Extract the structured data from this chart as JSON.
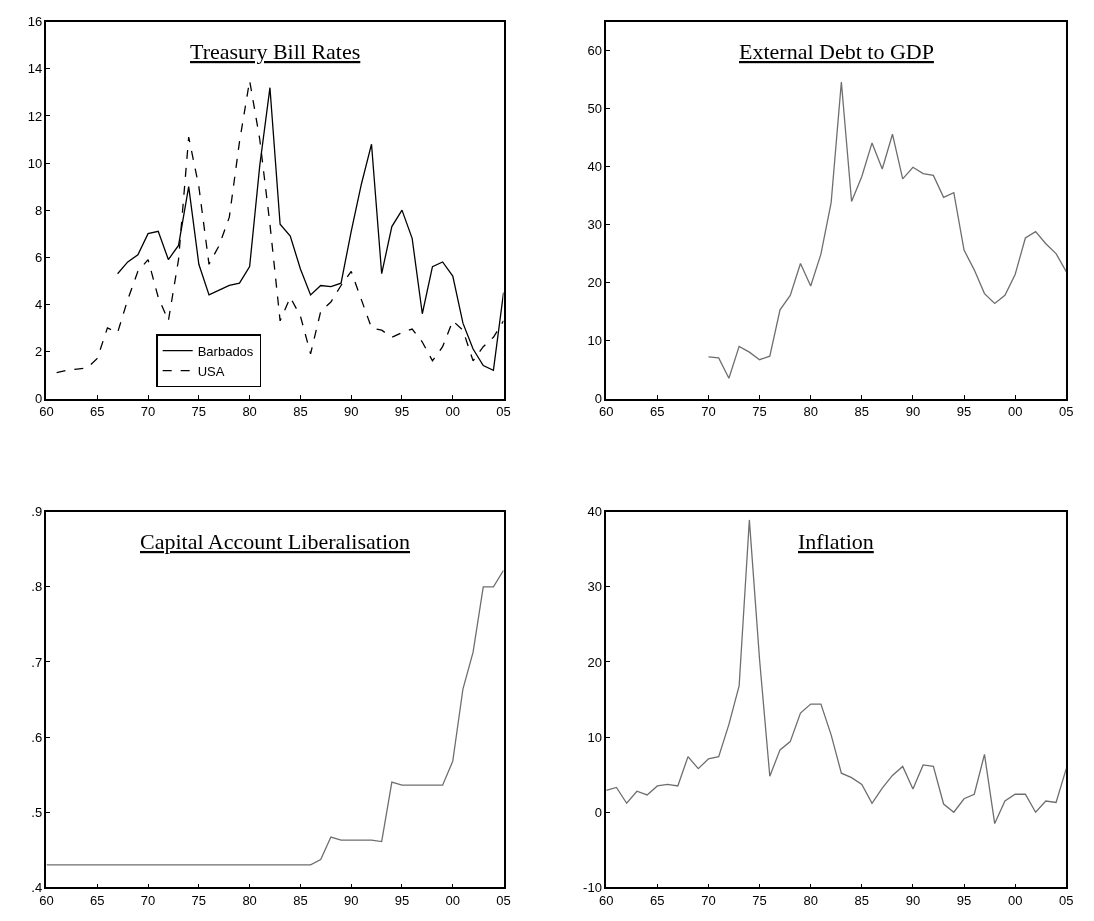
{
  "chart_data": [
    {
      "type": "line",
      "title": "Treasury Bill Rates",
      "xlim": [
        1960,
        2005
      ],
      "xticks": [
        {
          "value": 1960,
          "label": "60"
        },
        {
          "value": 1965,
          "label": "65"
        },
        {
          "value": 1970,
          "label": "70"
        },
        {
          "value": 1975,
          "label": "75"
        },
        {
          "value": 1980,
          "label": "80"
        },
        {
          "value": 1985,
          "label": "85"
        },
        {
          "value": 1990,
          "label": "90"
        },
        {
          "value": 1995,
          "label": "95"
        },
        {
          "value": 2000,
          "label": "00"
        },
        {
          "value": 2005,
          "label": "05"
        }
      ],
      "ylim": [
        0,
        16
      ],
      "yticks": [
        0,
        2,
        4,
        6,
        8,
        10,
        12,
        14,
        16
      ],
      "legend": "bottom left",
      "series": [
        {
          "name": "Barbados",
          "color": "#000000",
          "line_style": "solid",
          "x": [
            1967,
            1968,
            1969,
            1970,
            1971,
            1972,
            1973,
            1974,
            1975,
            1976,
            1977,
            1978,
            1979,
            1980,
            1981,
            1982,
            1983,
            1984,
            1985,
            1986,
            1987,
            1988,
            1989,
            1990,
            1991,
            1992,
            1993,
            1994,
            1995,
            1996,
            1997,
            1998,
            1999,
            2000,
            2001,
            2002,
            2003,
            2004,
            2005
          ],
          "values": [
            5.3,
            5.8,
            6.1,
            7.0,
            7.1,
            5.9,
            6.5,
            9.0,
            5.7,
            4.4,
            4.6,
            4.8,
            4.9,
            5.6,
            9.9,
            13.2,
            7.4,
            6.9,
            5.5,
            4.4,
            4.8,
            4.75,
            4.9,
            7.1,
            9.1,
            10.8,
            5.3,
            7.3,
            8.0,
            6.8,
            3.6,
            5.6,
            5.8,
            5.2,
            3.2,
            2.1,
            1.4,
            1.2,
            4.5
          ]
        },
        {
          "name": "USA",
          "color": "#000000",
          "line_style": "dashed",
          "x": [
            1961,
            1962,
            1963,
            1964,
            1965,
            1966,
            1967,
            1968,
            1969,
            1970,
            1971,
            1972,
            1973,
            1974,
            1975,
            1976,
            1977,
            1978,
            1979,
            1980,
            1981,
            1982,
            1983,
            1984,
            1985,
            1986,
            1987,
            1988,
            1989,
            1990,
            1991,
            1992,
            1993,
            1994,
            1995,
            1996,
            1997,
            1998,
            1999,
            2000,
            2001,
            2002,
            2003,
            2004,
            2005
          ],
          "values": [
            1.1,
            1.2,
            1.25,
            1.3,
            1.7,
            3.0,
            2.8,
            4.2,
            5.4,
            5.9,
            4.3,
            3.3,
            5.9,
            11.1,
            9.0,
            5.7,
            6.5,
            7.7,
            10.9,
            13.5,
            11.0,
            7.4,
            3.3,
            4.3,
            3.5,
            1.9,
            3.7,
            4.1,
            4.8,
            5.4,
            4.2,
            3.0,
            2.9,
            2.6,
            2.8,
            2.95,
            2.4,
            1.6,
            2.2,
            3.3,
            2.9,
            1.6,
            2.2,
            2.6,
            3.3
          ]
        }
      ]
    },
    {
      "type": "line",
      "title": "External Debt to GDP",
      "xlim": [
        1960,
        2005
      ],
      "xticks": [
        {
          "value": 1960,
          "label": "60"
        },
        {
          "value": 1965,
          "label": "65"
        },
        {
          "value": 1970,
          "label": "70"
        },
        {
          "value": 1975,
          "label": "75"
        },
        {
          "value": 1980,
          "label": "80"
        },
        {
          "value": 1985,
          "label": "85"
        },
        {
          "value": 1990,
          "label": "90"
        },
        {
          "value": 1995,
          "label": "95"
        },
        {
          "value": 2000,
          "label": "00"
        },
        {
          "value": 2005,
          "label": "05"
        }
      ],
      "ylim": [
        0,
        65
      ],
      "yticks": [
        0,
        10,
        20,
        30,
        40,
        50,
        60
      ],
      "legend": false,
      "series": [
        {
          "color": "#6e6e6e",
          "line_style": "solid",
          "x": [
            1970,
            1971,
            1972,
            1973,
            1974,
            1975,
            1976,
            1977,
            1978,
            1979,
            1980,
            1981,
            1982,
            1983,
            1984,
            1985,
            1986,
            1987,
            1988,
            1989,
            1990,
            1991,
            1992,
            1993,
            1994,
            1995,
            1996,
            1997,
            1998,
            1999,
            2000,
            2001,
            2002,
            2003,
            2004,
            2005
          ],
          "values": [
            7.2,
            7.0,
            3.5,
            9.0,
            8.0,
            6.7,
            7.3,
            15.3,
            17.8,
            23.3,
            19.4,
            24.9,
            33.8,
            54.6,
            34.0,
            38.3,
            44.1,
            39.6,
            45.6,
            37.9,
            39.9,
            38.8,
            38.5,
            34.7,
            35.5,
            25.6,
            22.2,
            18.1,
            16.4,
            17.8,
            21.4,
            27.7,
            28.8,
            26.7,
            25.0,
            21.9
          ]
        }
      ]
    },
    {
      "type": "line",
      "title": "Capital Account Liberalisation",
      "xlim": [
        1960,
        2005
      ],
      "xticks": [
        {
          "value": 1960,
          "label": "60"
        },
        {
          "value": 1965,
          "label": "65"
        },
        {
          "value": 1970,
          "label": "70"
        },
        {
          "value": 1975,
          "label": "75"
        },
        {
          "value": 1980,
          "label": "80"
        },
        {
          "value": 1985,
          "label": "85"
        },
        {
          "value": 1990,
          "label": "90"
        },
        {
          "value": 1995,
          "label": "95"
        },
        {
          "value": 2000,
          "label": "00"
        },
        {
          "value": 2005,
          "label": "05"
        }
      ],
      "ylim": [
        0.4,
        0.9
      ],
      "yticks": [
        {
          "value": 0.4,
          "label": ".4"
        },
        {
          "value": 0.5,
          "label": ".5"
        },
        {
          "value": 0.6,
          "label": ".6"
        },
        {
          "value": 0.7,
          "label": ".7"
        },
        {
          "value": 0.8,
          "label": ".8"
        },
        {
          "value": 0.9,
          "label": ".9"
        }
      ],
      "legend": false,
      "series": [
        {
          "color": "#6e6e6e",
          "line_style": "solid",
          "x": [
            1960,
            1961,
            1962,
            1963,
            1964,
            1965,
            1966,
            1967,
            1968,
            1969,
            1970,
            1971,
            1972,
            1973,
            1974,
            1975,
            1976,
            1977,
            1978,
            1979,
            1980,
            1981,
            1982,
            1983,
            1984,
            1985,
            1986,
            1987,
            1988,
            1989,
            1990,
            1991,
            1992,
            1993,
            1994,
            1995,
            1996,
            1997,
            1998,
            1999,
            2000,
            2001,
            2002,
            2003,
            2004,
            2005
          ],
          "values": [
            0.43,
            0.43,
            0.43,
            0.43,
            0.43,
            0.43,
            0.43,
            0.43,
            0.43,
            0.43,
            0.43,
            0.43,
            0.43,
            0.43,
            0.43,
            0.43,
            0.43,
            0.43,
            0.43,
            0.43,
            0.43,
            0.43,
            0.43,
            0.43,
            0.43,
            0.43,
            0.43,
            0.437,
            0.467,
            0.463,
            0.463,
            0.463,
            0.463,
            0.461,
            0.54,
            0.536,
            0.536,
            0.536,
            0.536,
            0.536,
            0.568,
            0.664,
            0.713,
            0.8,
            0.8,
            0.822
          ]
        }
      ]
    },
    {
      "type": "line",
      "title": "Inflation",
      "xlim": [
        1960,
        2005
      ],
      "xticks": [
        {
          "value": 1960,
          "label": "60"
        },
        {
          "value": 1965,
          "label": "65"
        },
        {
          "value": 1970,
          "label": "70"
        },
        {
          "value": 1975,
          "label": "75"
        },
        {
          "value": 1980,
          "label": "80"
        },
        {
          "value": 1985,
          "label": "85"
        },
        {
          "value": 1990,
          "label": "90"
        },
        {
          "value": 1995,
          "label": "95"
        },
        {
          "value": 2000,
          "label": "00"
        },
        {
          "value": 2005,
          "label": "05"
        }
      ],
      "ylim": [
        -10,
        40
      ],
      "yticks": [
        -10,
        0,
        10,
        20,
        30,
        40
      ],
      "legend": false,
      "series": [
        {
          "color": "#6e6e6e",
          "line_style": "solid",
          "x": [
            1960,
            1961,
            1962,
            1963,
            1964,
            1965,
            1966,
            1967,
            1968,
            1969,
            1970,
            1971,
            1972,
            1973,
            1974,
            1975,
            1976,
            1977,
            1978,
            1979,
            1980,
            1981,
            1982,
            1983,
            1984,
            1985,
            1986,
            1987,
            1988,
            1989,
            1990,
            1991,
            1992,
            1993,
            1994,
            1995,
            1996,
            1997,
            1998,
            1999,
            2000,
            2001,
            2002,
            2003,
            2004,
            2005
          ],
          "values": [
            2.9,
            3.3,
            1.2,
            2.8,
            2.3,
            3.5,
            3.7,
            3.5,
            7.4,
            5.8,
            7.1,
            7.4,
            11.7,
            16.8,
            38.9,
            20.3,
            4.8,
            8.3,
            9.4,
            13.2,
            14.4,
            14.4,
            10.3,
            5.2,
            4.6,
            3.7,
            1.2,
            3.2,
            4.9,
            6.1,
            3.1,
            6.3,
            6.1,
            1.1,
            0.0,
            1.8,
            2.4,
            7.7,
            -1.5,
            1.5,
            2.4,
            2.4,
            0.0,
            1.5,
            1.3,
            5.8
          ]
        }
      ]
    }
  ]
}
